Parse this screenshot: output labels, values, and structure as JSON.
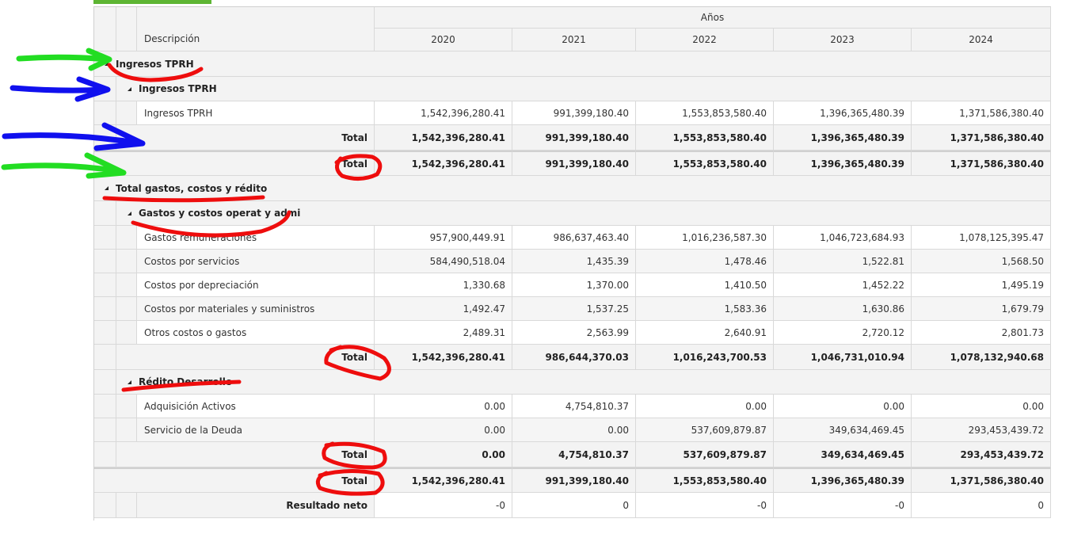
{
  "table": {
    "header": {
      "group": "Años",
      "description": "Descripción",
      "years": [
        "2020",
        "2021",
        "2022",
        "2023",
        "2024"
      ]
    },
    "sections": [
      {
        "label": "Ingresos TPRH",
        "subsections": [
          {
            "label": "Ingresos TPRH",
            "rows": [
              {
                "label": "Ingresos TPRH",
                "values": [
                  "1,542,396,280.41",
                  "991,399,180.40",
                  "1,553,853,580.40",
                  "1,396,365,480.39",
                  "1,371,586,380.40"
                ]
              }
            ],
            "total": {
              "label": "Total",
              "values": [
                "1,542,396,280.41",
                "991,399,180.40",
                "1,553,853,580.40",
                "1,396,365,480.39",
                "1,371,586,380.40"
              ]
            }
          }
        ],
        "total": {
          "label": "Total",
          "values": [
            "1,542,396,280.41",
            "991,399,180.40",
            "1,553,853,580.40",
            "1,396,365,480.39",
            "1,371,586,380.40"
          ]
        }
      },
      {
        "label": "Total gastos, costos y rédito",
        "subsections": [
          {
            "label": "Gastos y costos operat y admi",
            "rows": [
              {
                "label": "Gastos remuneraciones",
                "values": [
                  "957,900,449.91",
                  "986,637,463.40",
                  "1,016,236,587.30",
                  "1,046,723,684.93",
                  "1,078,125,395.47"
                ]
              },
              {
                "label": "Costos por servicios",
                "values": [
                  "584,490,518.04",
                  "1,435.39",
                  "1,478.46",
                  "1,522.81",
                  "1,568.50"
                ]
              },
              {
                "label": "Costos por depreciación",
                "values": [
                  "1,330.68",
                  "1,370.00",
                  "1,410.50",
                  "1,452.22",
                  "1,495.19"
                ]
              },
              {
                "label": "Costos por materiales y suministros",
                "values": [
                  "1,492.47",
                  "1,537.25",
                  "1,583.36",
                  "1,630.86",
                  "1,679.79"
                ]
              },
              {
                "label": "Otros costos o gastos",
                "values": [
                  "2,489.31",
                  "2,563.99",
                  "2,640.91",
                  "2,720.12",
                  "2,801.73"
                ]
              }
            ],
            "total": {
              "label": "Total",
              "values": [
                "1,542,396,280.41",
                "986,644,370.03",
                "1,016,243,700.53",
                "1,046,731,010.94",
                "1,078,132,940.68"
              ]
            }
          },
          {
            "label": "Rédito Desarrollo",
            "rows": [
              {
                "label": "Adquisición Activos",
                "values": [
                  "0.00",
                  "4,754,810.37",
                  "0.00",
                  "0.00",
                  "0.00"
                ]
              },
              {
                "label": "Servicio de la Deuda",
                "values": [
                  "0.00",
                  "0.00",
                  "537,609,879.87",
                  "349,634,469.45",
                  "293,453,439.72"
                ]
              }
            ],
            "total": {
              "label": "Total",
              "values": [
                "0.00",
                "4,754,810.37",
                "537,609,879.87",
                "349,634,469.45",
                "293,453,439.72"
              ]
            }
          }
        ],
        "total": {
          "label": "Total",
          "values": [
            "1,542,396,280.41",
            "991,399,180.40",
            "1,553,853,580.40",
            "1,396,365,480.39",
            "1,371,586,380.40"
          ]
        }
      }
    ],
    "net": {
      "label": "Resultado neto",
      "values": [
        "-0",
        "0",
        "-0",
        "-0",
        "0"
      ]
    }
  }
}
